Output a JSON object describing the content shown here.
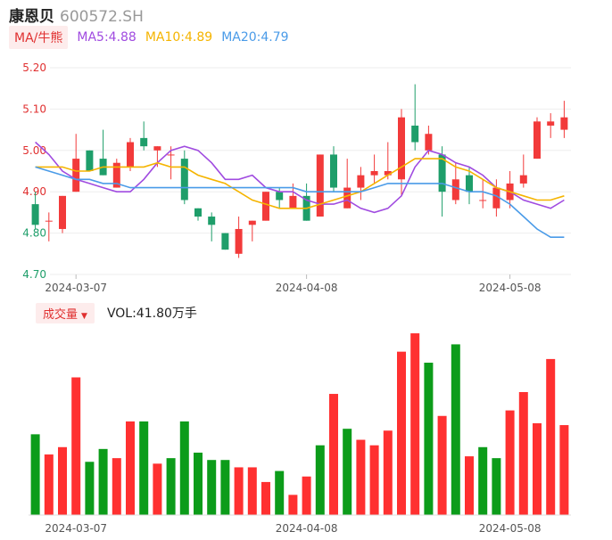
{
  "header": {
    "name": "康恩贝",
    "code": "600572.SH"
  },
  "ma_legend": {
    "type_label": "MA/牛熊",
    "items": [
      {
        "label": "MA5:4.88",
        "color": "#a04be0"
      },
      {
        "label": "MA10:4.89",
        "color": "#f5b400"
      },
      {
        "label": "MA20:4.79",
        "color": "#4a9be8"
      }
    ]
  },
  "volume_legend": {
    "label": "成交量",
    "value_text": "VOL:41.80万手"
  },
  "colors": {
    "up": "#f23a3a",
    "down": "#1e9e6a",
    "vol_up": "#ff3030",
    "vol_down": "#0c9c1a"
  },
  "chart_data": [
    {
      "type": "candlestick",
      "title": "",
      "ylim": [
        4.7,
        5.2
      ],
      "yticks": [
        "5.20",
        "5.10",
        "5.00",
        "4.90",
        "4.80",
        "4.70"
      ],
      "ytick_values": [
        5.2,
        5.1,
        5.0,
        4.9,
        4.8,
        4.7
      ],
      "ytick_colors": [
        "#e03030",
        "#e03030",
        "#e03030",
        "#e03030",
        "#1e9e6a",
        "#1e9e6a"
      ],
      "x_tick_labels": [
        {
          "index": 3,
          "label": "2024-03-07"
        },
        {
          "index": 20,
          "label": "2024-04-08"
        },
        {
          "index": 35,
          "label": "2024-05-08"
        }
      ],
      "ohlc": [
        [
          4.87,
          4.9,
          4.81,
          4.82
        ],
        [
          4.83,
          4.85,
          4.78,
          4.83
        ],
        [
          4.81,
          4.89,
          4.8,
          4.89
        ],
        [
          4.9,
          5.04,
          4.9,
          4.98
        ],
        [
          5.0,
          5.0,
          4.95,
          4.95
        ],
        [
          4.98,
          5.05,
          4.94,
          4.94
        ],
        [
          4.91,
          4.98,
          4.91,
          4.97
        ],
        [
          4.96,
          5.03,
          4.95,
          5.02
        ],
        [
          5.03,
          5.07,
          5.0,
          5.01
        ],
        [
          5.0,
          5.01,
          4.96,
          5.01
        ],
        [
          4.99,
          5.01,
          4.93,
          4.99
        ],
        [
          4.98,
          5.0,
          4.87,
          4.88
        ],
        [
          4.86,
          4.86,
          4.83,
          4.84
        ],
        [
          4.84,
          4.85,
          4.78,
          4.82
        ],
        [
          4.8,
          4.8,
          4.76,
          4.76
        ],
        [
          4.75,
          4.84,
          4.74,
          4.81
        ],
        [
          4.82,
          4.83,
          4.78,
          4.83
        ],
        [
          4.83,
          4.9,
          4.83,
          4.9
        ],
        [
          4.9,
          4.91,
          4.86,
          4.88
        ],
        [
          4.86,
          4.92,
          4.86,
          4.89
        ],
        [
          4.89,
          4.92,
          4.83,
          4.83
        ],
        [
          4.84,
          4.99,
          4.84,
          4.99
        ],
        [
          4.99,
          5.01,
          4.9,
          4.91
        ],
        [
          4.86,
          4.98,
          4.86,
          4.91
        ],
        [
          4.91,
          4.96,
          4.88,
          4.94
        ],
        [
          4.94,
          4.99,
          4.92,
          4.95
        ],
        [
          4.94,
          5.02,
          4.93,
          4.95
        ],
        [
          4.93,
          5.1,
          4.89,
          5.08
        ],
        [
          5.06,
          5.16,
          5.0,
          5.02
        ],
        [
          5.0,
          5.06,
          4.99,
          5.04
        ],
        [
          4.99,
          5.01,
          4.84,
          4.9
        ],
        [
          4.88,
          4.97,
          4.87,
          4.93
        ],
        [
          4.94,
          4.96,
          4.87,
          4.9
        ],
        [
          4.88,
          4.93,
          4.86,
          4.88
        ],
        [
          4.86,
          4.93,
          4.84,
          4.91
        ],
        [
          4.88,
          4.95,
          4.86,
          4.92
        ],
        [
          4.92,
          4.99,
          4.91,
          4.94
        ],
        [
          4.98,
          5.08,
          4.98,
          5.07
        ],
        [
          5.06,
          5.09,
          5.03,
          5.07
        ],
        [
          5.05,
          5.12,
          5.03,
          5.08
        ]
      ],
      "ma5": [
        5.02,
        4.99,
        4.95,
        4.93,
        4.92,
        4.91,
        4.9,
        4.9,
        4.93,
        4.97,
        5.0,
        5.01,
        5.0,
        4.97,
        4.93,
        4.93,
        4.94,
        4.91,
        4.9,
        4.9,
        4.88,
        4.87,
        4.87,
        4.88,
        4.86,
        4.85,
        4.86,
        4.89,
        4.96,
        5.0,
        4.99,
        4.97,
        4.96,
        4.94,
        4.91,
        4.9,
        4.88,
        4.87,
        4.86,
        4.88
      ],
      "ma10": [
        4.96,
        4.96,
        4.96,
        4.95,
        4.95,
        4.96,
        4.96,
        4.96,
        4.96,
        4.97,
        4.96,
        4.96,
        4.94,
        4.93,
        4.92,
        4.9,
        4.88,
        4.87,
        4.86,
        4.86,
        4.86,
        4.87,
        4.88,
        4.89,
        4.9,
        4.92,
        4.94,
        4.96,
        4.98,
        4.98,
        4.98,
        4.96,
        4.95,
        4.93,
        4.91,
        4.9,
        4.89,
        4.88,
        4.88,
        4.89
      ],
      "ma20": [
        4.96,
        4.95,
        4.94,
        4.93,
        4.93,
        4.92,
        4.92,
        4.91,
        4.91,
        4.91,
        4.91,
        4.91,
        4.91,
        4.91,
        4.91,
        4.91,
        4.91,
        4.91,
        4.91,
        4.91,
        4.9,
        4.9,
        4.9,
        4.9,
        4.9,
        4.91,
        4.92,
        4.92,
        4.92,
        4.92,
        4.92,
        4.91,
        4.9,
        4.9,
        4.89,
        4.87,
        4.84,
        4.81,
        4.79,
        4.79
      ]
    },
    {
      "type": "bar",
      "title": "",
      "ylabel": "",
      "ylim": [
        0,
        100
      ],
      "x_tick_labels": [
        {
          "index": 3,
          "label": "2024-03-07"
        },
        {
          "index": 20,
          "label": "2024-04-08"
        },
        {
          "index": 35,
          "label": "2024-05-08"
        }
      ],
      "values": [
        44,
        33,
        37,
        75,
        29,
        36,
        31,
        51,
        51,
        28,
        31,
        51,
        34,
        30,
        30,
        26,
        26,
        18,
        24,
        11,
        21,
        38,
        66,
        47,
        41,
        38,
        46,
        89,
        99,
        83,
        54,
        93,
        32,
        37,
        31,
        57,
        67,
        50,
        85,
        49
      ],
      "up": [
        false,
        true,
        true,
        true,
        false,
        false,
        true,
        true,
        false,
        true,
        false,
        false,
        false,
        false,
        false,
        true,
        true,
        true,
        false,
        true,
        true,
        false,
        true,
        false,
        true,
        true,
        true,
        true,
        true,
        false,
        true,
        false,
        true,
        false,
        false,
        true,
        true,
        true,
        true,
        true
      ]
    }
  ]
}
